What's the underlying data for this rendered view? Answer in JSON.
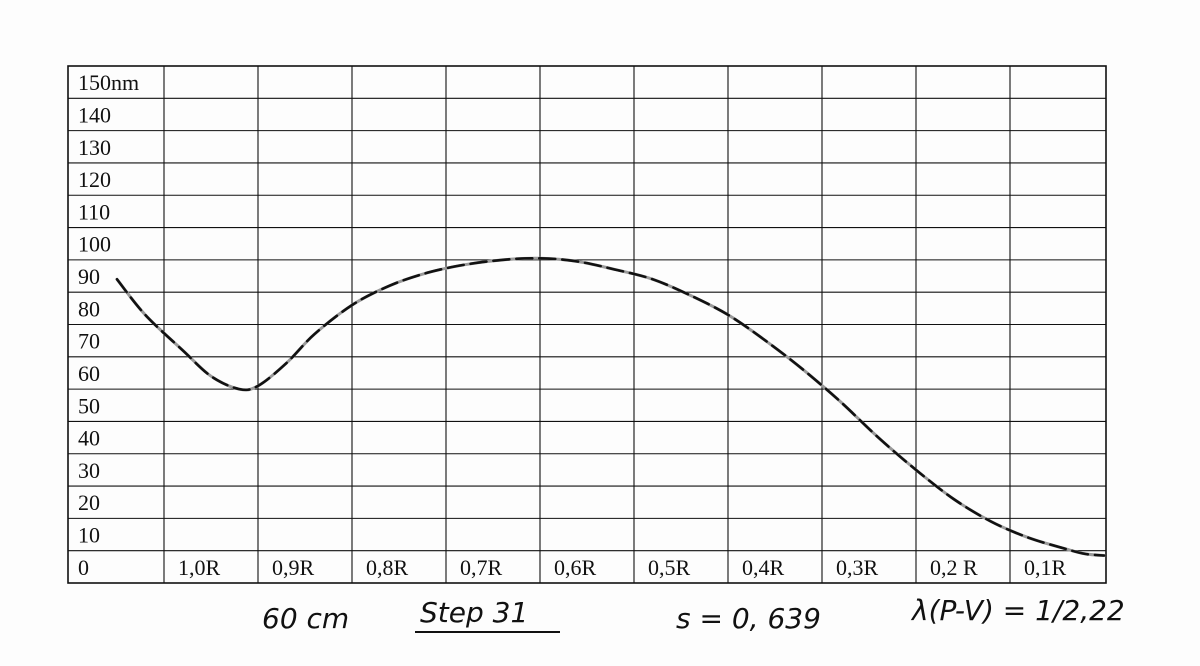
{
  "chart_data": {
    "type": "line",
    "y_ticks": [
      "150nm",
      "140",
      "130",
      "120",
      "110",
      "100",
      "90",
      "80",
      "70",
      "60",
      "50",
      "40",
      "30",
      "20",
      "10",
      "0"
    ],
    "x_ticks": [
      "1,0R",
      "0,9R",
      "0,8R",
      "0,7R",
      "0,6R",
      "0,5R",
      "0,4R",
      "0,3R",
      "0,2 R",
      "0,1R"
    ],
    "xlim": [
      1.05,
      0.0
    ],
    "ylim": [
      0,
      150
    ],
    "grid": true,
    "series": [
      {
        "style": "dashed",
        "color": "#111111",
        "x": [
          1.05,
          1.02,
          0.98,
          0.95,
          0.92,
          0.9,
          0.87,
          0.84,
          0.8,
          0.76,
          0.72,
          0.68,
          0.64,
          0.6,
          0.56,
          0.52,
          0.48,
          0.44,
          0.4,
          0.36,
          0.32,
          0.28,
          0.24,
          0.2,
          0.16,
          0.12,
          0.08,
          0.04,
          0.02,
          0.0
        ],
        "y": [
          89,
          78,
          67,
          59,
          55,
          56,
          63,
          72,
          81,
          87,
          91,
          93.5,
          95,
          95.5,
          94.5,
          92,
          89,
          84,
          78,
          70,
          61,
          51,
          40,
          30,
          21,
          14,
          9,
          5.5,
          4,
          3.5
        ]
      }
    ]
  },
  "annotations": {
    "distance": "60 cm",
    "step": "Step 31",
    "s_value": "s = 0, 639",
    "lambda": "λ(P-V) = 1/2,22"
  }
}
